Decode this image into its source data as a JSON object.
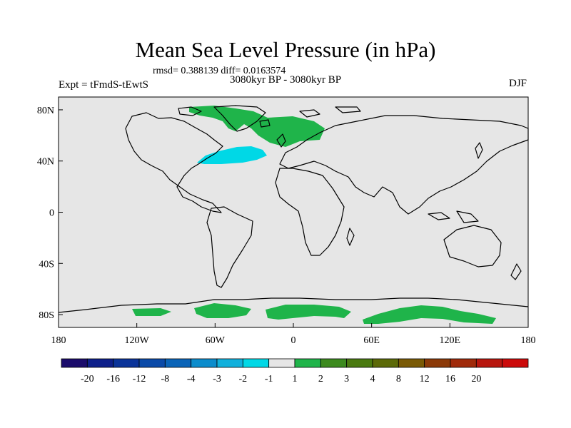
{
  "title": "Mean Sea Level Pressure (in hPa)",
  "stats": "rmsd= 0.388139 diff= 0.0163574",
  "expt": "Expt = tFmdS-tEwtS",
  "period": "3080kyr BP - 3080kyr BP",
  "season": "DJF",
  "lat_ticks": [
    {
      "label": "80N",
      "lat": 80
    },
    {
      "label": "40N",
      "lat": 40
    },
    {
      "label": "0",
      "lat": 0
    },
    {
      "label": "40S",
      "lat": -40
    },
    {
      "label": "80S",
      "lat": -80
    }
  ],
  "lon_ticks": [
    {
      "label": "180",
      "lon": -180
    },
    {
      "label": "120W",
      "lon": -120
    },
    {
      "label": "60W",
      "lon": -60
    },
    {
      "label": "0",
      "lon": 0
    },
    {
      "label": "60E",
      "lon": 60
    },
    {
      "label": "120E",
      "lon": 120
    },
    {
      "label": "180",
      "lon": 180
    }
  ],
  "colors": {
    "background": "#e6e6e6",
    "positive_anomaly": "#1fb44a",
    "negative_anomaly": "#00d8e6",
    "coastline": "#000000"
  },
  "colorbar": {
    "colors": [
      "#1a0b6b",
      "#0d1f8a",
      "#0a3399",
      "#0a4aa8",
      "#0a64b8",
      "#0b8ccc",
      "#10b0dc",
      "#00d8e6",
      "#e6e6e6",
      "#1fb44a",
      "#3c8a1e",
      "#4a7a10",
      "#5c6a08",
      "#7a5a05",
      "#8c3a08",
      "#a02a0a",
      "#b8160e",
      "#cc0a0a"
    ],
    "labels": [
      "-20",
      "-16",
      "-12",
      "-8",
      "-4",
      "-3",
      "-2",
      "-1",
      "1",
      "2",
      "3",
      "4",
      "8",
      "12",
      "16",
      "20"
    ]
  }
}
